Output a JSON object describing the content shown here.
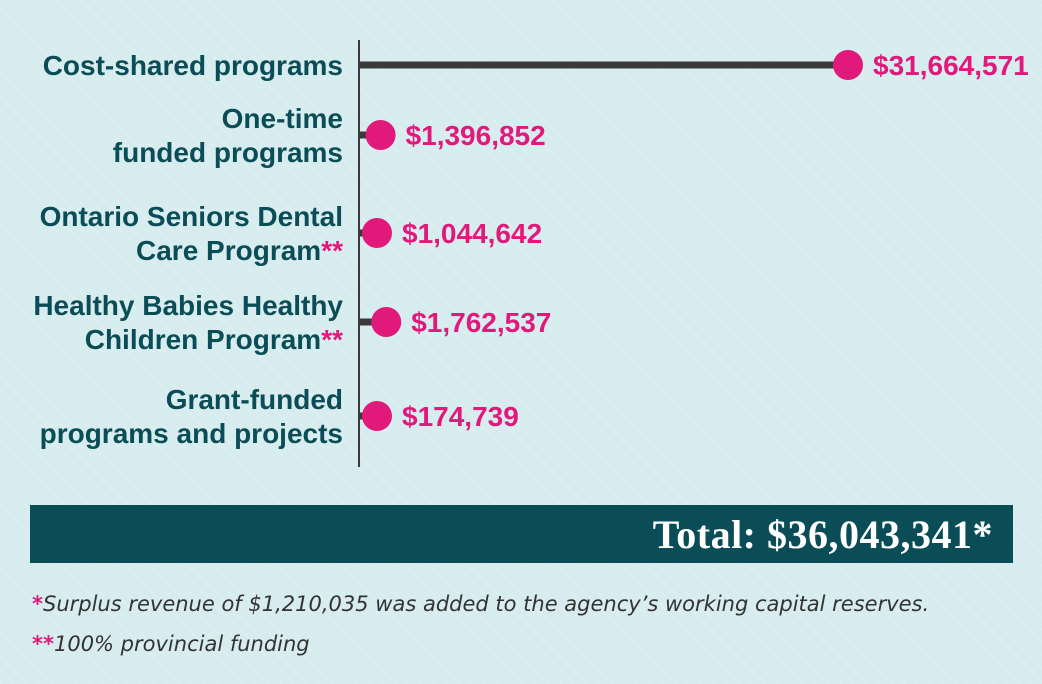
{
  "colors": {
    "background": "#d6ecee",
    "bar": "#3a3a3a",
    "dot": "#e0197b",
    "label": "#0b4d57",
    "value": "#e0197b",
    "total_bg": "#0b4d57"
  },
  "chart_data": {
    "type": "lollipop",
    "orientation": "horizontal",
    "categories": [
      [
        "Cost-shared programs"
      ],
      [
        "One-time",
        "funded programs"
      ],
      [
        "Ontario Seniors Dental",
        "Care Program",
        "**"
      ],
      [
        "Healthy Babies Healthy",
        "Children Program",
        "**"
      ],
      [
        "Grant-funded",
        "programs and projects"
      ]
    ],
    "values": [
      31664571,
      1396852,
      1044642,
      1762537,
      174739
    ],
    "value_labels": [
      "$31,664,571",
      "$1,396,852",
      "$1,044,642",
      "$1,762,537",
      "$174,739"
    ],
    "xlim": [
      0,
      31664571
    ],
    "grid": false
  },
  "total": {
    "text": "Total: $36,043,341*"
  },
  "notes": [
    {
      "marker": "*",
      "text": "Surplus revenue of $1,210,035 was added to the agency’s working capital reserves."
    },
    {
      "marker": "**",
      "text": "100% provincial funding"
    }
  ]
}
